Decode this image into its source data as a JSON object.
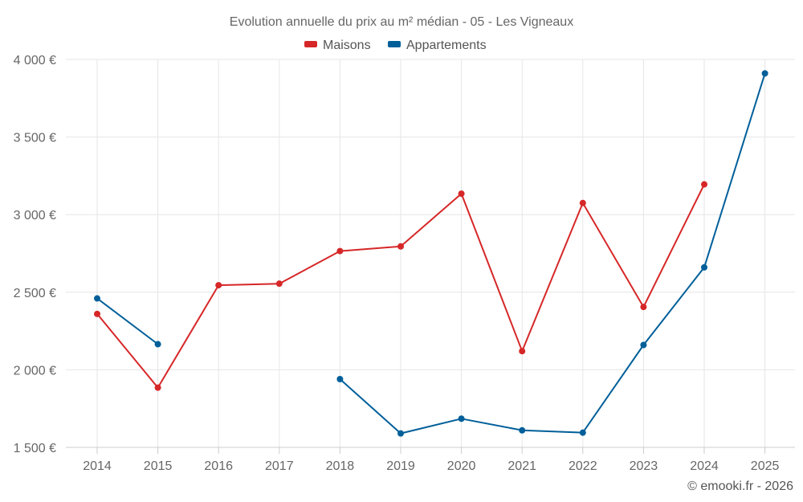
{
  "chart_data": {
    "type": "line",
    "title": "Evolution annuelle du prix au m² médian - 05 - Les Vigneaux",
    "categories": [
      "2014",
      "2015",
      "2016",
      "2017",
      "2018",
      "2019",
      "2020",
      "2021",
      "2022",
      "2023",
      "2024",
      "2025"
    ],
    "series": [
      {
        "name": "Maisons",
        "color": "#d62728",
        "values": [
          2360,
          1885,
          2545,
          2555,
          2765,
          2795,
          3135,
          2120,
          3075,
          2405,
          3195,
          null
        ]
      },
      {
        "name": "Appartements",
        "color": "#005f99",
        "values": [
          2460,
          2165,
          null,
          null,
          1940,
          1590,
          1685,
          1610,
          1595,
          2160,
          2660,
          3910
        ]
      }
    ],
    "ylim": [
      1500,
      4000
    ],
    "yticks": [
      1500,
      2000,
      2500,
      3000,
      3500,
      4000
    ],
    "ytick_labels": [
      "1 500 €",
      "2 000 €",
      "2 500 €",
      "3 000 €",
      "3 500 €",
      "4 000 €"
    ],
    "legend_position": "top-center",
    "grid": true,
    "xlabel": "",
    "ylabel": ""
  },
  "credit": "© emooki.fr - 2026"
}
